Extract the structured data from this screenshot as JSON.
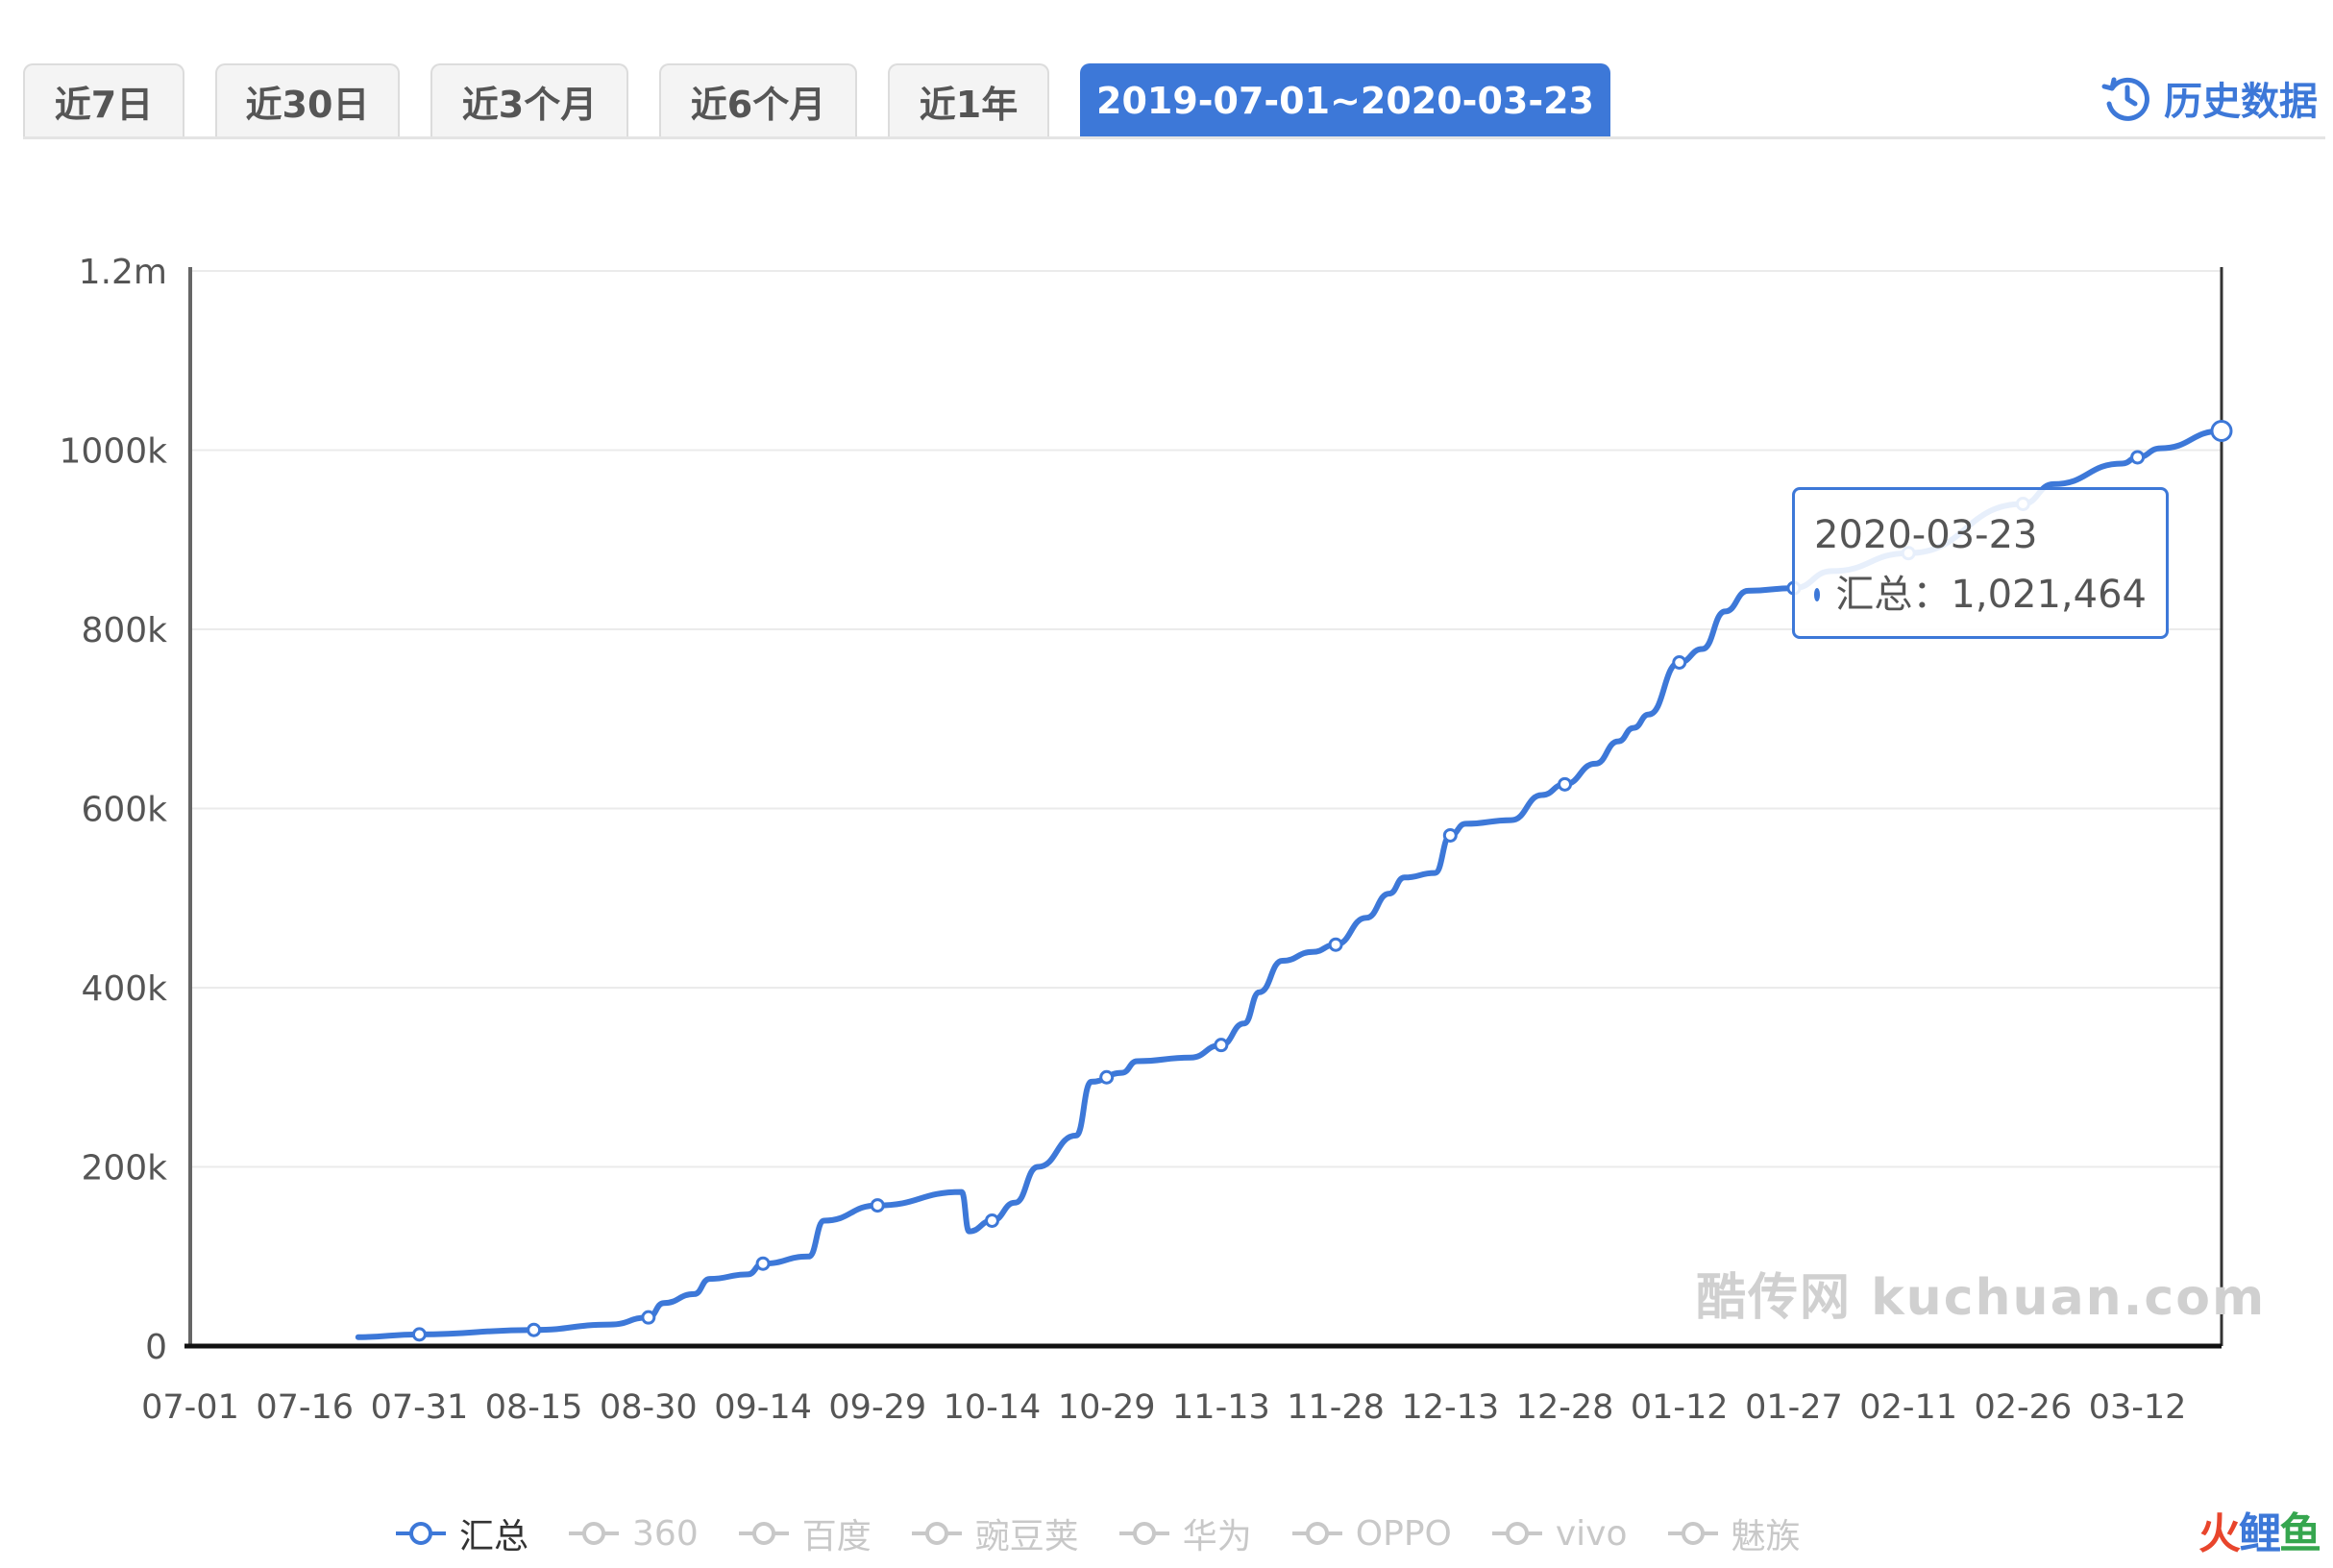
{
  "tabs": [
    {
      "label": "近7日",
      "active": false
    },
    {
      "label": "近30日",
      "active": false
    },
    {
      "label": "近3个月",
      "active": false
    },
    {
      "label": "近6个月",
      "active": false
    },
    {
      "label": "近1年",
      "active": false
    },
    {
      "label": "2019-07-01~2020-03-23",
      "active": true
    }
  ],
  "history_label": "历史数据",
  "tooltip": {
    "date": "2020-03-23",
    "series": "汇总",
    "separator": "：",
    "value": "1,021,464"
  },
  "watermark": "酷传网 kuchuan.com",
  "logo": {
    "part1": "火",
    "part2": "鲤",
    "part3": "鱼"
  },
  "legend": [
    {
      "name": "汇总",
      "active": true
    },
    {
      "name": "360",
      "active": false
    },
    {
      "name": "百度",
      "active": false
    },
    {
      "name": "豌豆荚",
      "active": false
    },
    {
      "name": "华为",
      "active": false
    },
    {
      "name": "OPPO",
      "active": false
    },
    {
      "name": "vivo",
      "active": false
    },
    {
      "name": "魅族",
      "active": false
    }
  ],
  "colors": {
    "accent": "#3d78d8",
    "inactive": "#c8c8c8"
  },
  "chart_data": {
    "type": "line",
    "title": "",
    "xlabel": "",
    "ylabel": "",
    "x_ticks": [
      "07-01",
      "07-16",
      "07-31",
      "08-15",
      "08-30",
      "09-14",
      "09-29",
      "10-14",
      "10-29",
      "11-13",
      "11-28",
      "12-13",
      "12-28",
      "01-12",
      "01-27",
      "02-11",
      "02-26",
      "03-12"
    ],
    "y_ticks": [
      "0",
      "200k",
      "400k",
      "600k",
      "800k",
      "1000k",
      "1.2m"
    ],
    "ylim": [
      0,
      1200000
    ],
    "x_start": "2019-07-01",
    "x_end": "2020-03-23",
    "grid": true,
    "legend_position": "bottom-center",
    "series": [
      {
        "name": "汇总",
        "points": [
          [
            "2019-07-23",
            10000
          ],
          [
            "2019-07-31",
            13000
          ],
          [
            "2019-08-15",
            18000
          ],
          [
            "2019-08-25",
            24000
          ],
          [
            "2019-08-30",
            32000
          ],
          [
            "2019-09-01",
            48000
          ],
          [
            "2019-09-05",
            58000
          ],
          [
            "2019-09-07",
            75000
          ],
          [
            "2019-09-12",
            80000
          ],
          [
            "2019-09-14",
            92000
          ],
          [
            "2019-09-20",
            100000
          ],
          [
            "2019-09-22",
            140000
          ],
          [
            "2019-09-29",
            157000
          ],
          [
            "2019-10-10",
            172000
          ],
          [
            "2019-10-11",
            128000
          ],
          [
            "2019-10-14",
            140000
          ],
          [
            "2019-10-17",
            160000
          ],
          [
            "2019-10-20",
            200000
          ],
          [
            "2019-10-25",
            235000
          ],
          [
            "2019-10-27",
            295000
          ],
          [
            "2019-10-31",
            305000
          ],
          [
            "2019-11-02",
            318000
          ],
          [
            "2019-11-09",
            322000
          ],
          [
            "2019-11-13",
            336000
          ],
          [
            "2019-11-16",
            360000
          ],
          [
            "2019-11-18",
            395000
          ],
          [
            "2019-11-21",
            430000
          ],
          [
            "2019-11-25",
            440000
          ],
          [
            "2019-11-28",
            448000
          ],
          [
            "2019-12-02",
            478000
          ],
          [
            "2019-12-05",
            505000
          ],
          [
            "2019-12-07",
            523000
          ],
          [
            "2019-12-11",
            528000
          ],
          [
            "2019-12-13",
            570000
          ],
          [
            "2019-12-15",
            583000
          ],
          [
            "2019-12-21",
            587000
          ],
          [
            "2019-12-25",
            615000
          ],
          [
            "2019-12-28",
            627000
          ],
          [
            "2020-01-01",
            650000
          ],
          [
            "2020-01-04",
            675000
          ],
          [
            "2020-01-06",
            690000
          ],
          [
            "2020-01-08",
            705000
          ],
          [
            "2020-01-12",
            763000
          ],
          [
            "2020-01-15",
            778000
          ],
          [
            "2020-01-18",
            820000
          ],
          [
            "2020-01-21",
            843000
          ],
          [
            "2020-01-27",
            846000
          ],
          [
            "2020-02-01",
            865000
          ],
          [
            "2020-02-11",
            885000
          ],
          [
            "2020-02-26",
            940000
          ],
          [
            "2020-03-01",
            962000
          ],
          [
            "2020-03-10",
            985000
          ],
          [
            "2020-03-12",
            992000
          ],
          [
            "2020-03-15",
            1002000
          ],
          [
            "2020-03-23",
            1021464
          ]
        ],
        "markers": [
          "2019-07-31",
          "2019-08-15",
          "2019-08-30",
          "2019-09-14",
          "2019-09-29",
          "2019-10-14",
          "2019-10-29",
          "2019-11-13",
          "2019-11-28",
          "2019-12-13",
          "2019-12-28",
          "2020-01-12",
          "2020-01-27",
          "2020-02-11",
          "2020-02-26",
          "2020-03-12"
        ],
        "highlight": "2020-03-23"
      }
    ]
  }
}
